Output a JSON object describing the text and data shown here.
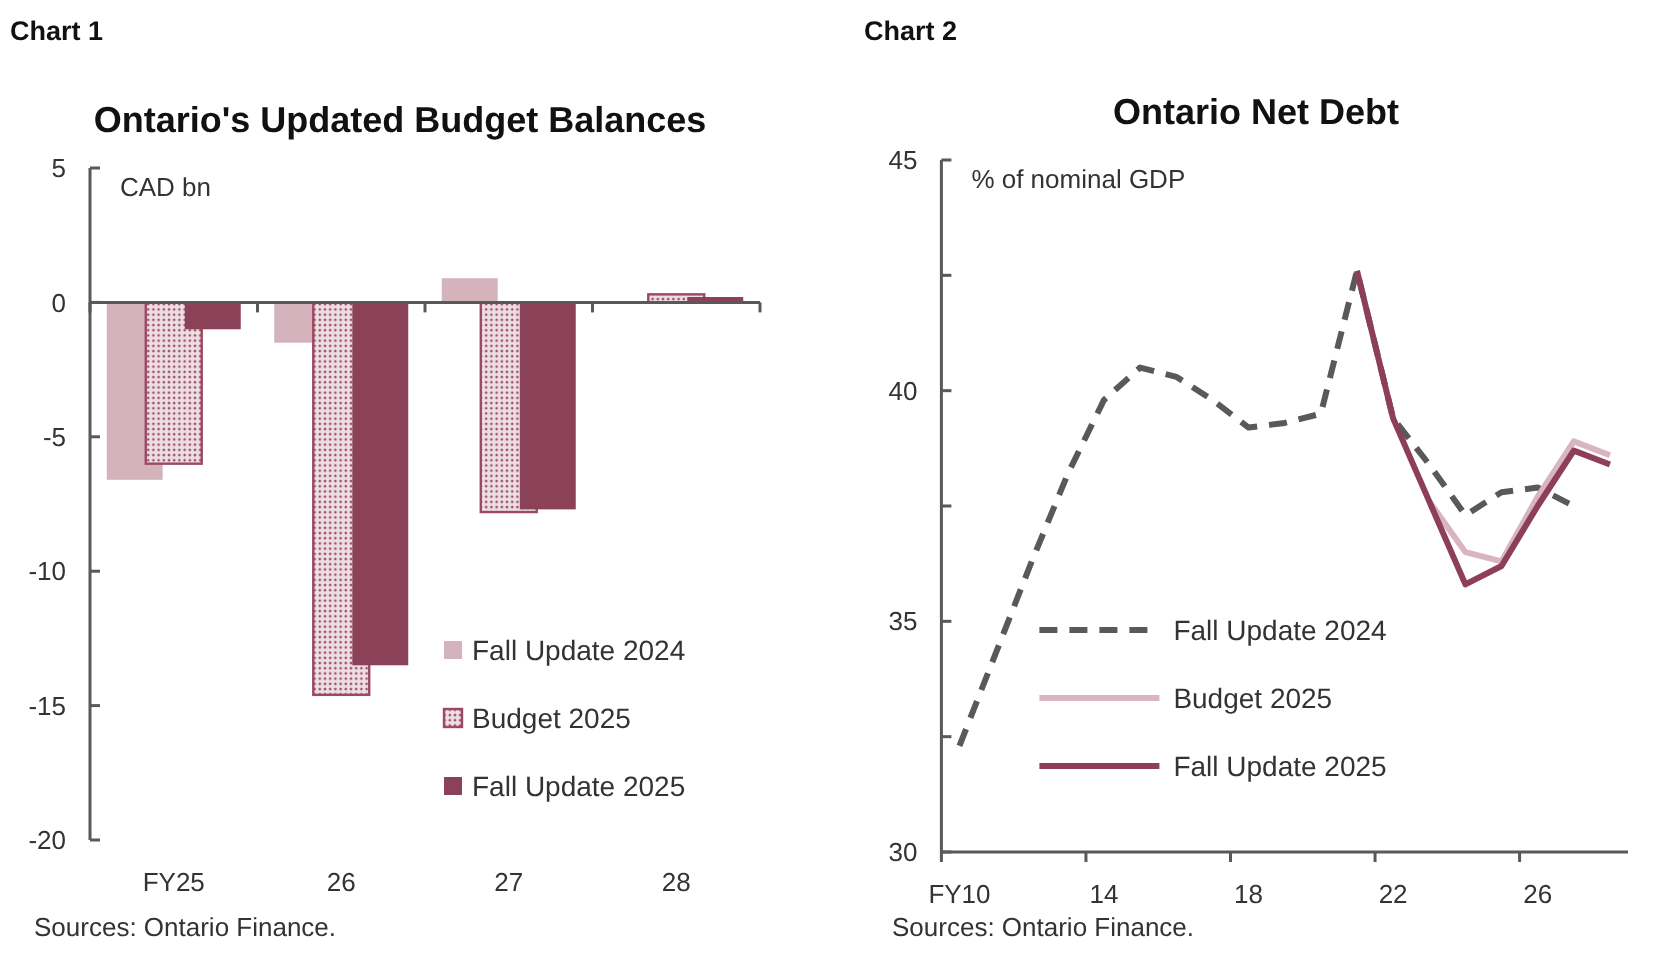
{
  "chart_data": [
    {
      "type": "bar",
      "title": "Ontario's Updated Budget Balances",
      "ylabel": "CAD bn",
      "annotations": [
        "Chart 1",
        "Sources: Ontario Finance."
      ],
      "categories": [
        "FY25",
        "26",
        "27",
        "28"
      ],
      "ylim": [
        -20,
        5
      ],
      "yticks": [
        -20,
        -15,
        -10,
        -5,
        0,
        5
      ],
      "legend": "bottom right",
      "series": [
        {
          "name": "Fall Update 2024",
          "color": "#d5b3bd",
          "values": [
            -6.6,
            -1.5,
            0.9,
            null
          ]
        },
        {
          "name": "Budget 2025",
          "color": "#9b4a62",
          "line_style": "dotted",
          "values": [
            -6.0,
            -14.6,
            -7.8,
            0.3
          ]
        },
        {
          "name": "Fall Update 2025",
          "color": "#8b4259",
          "values": [
            -1.0,
            -13.5,
            -7.7,
            0.2
          ]
        }
      ]
    },
    {
      "type": "line",
      "title": "Ontario Net Debt",
      "ylabel": "% of nominal GDP",
      "annotations": [
        "Chart 2",
        "Sources: Ontario Finance."
      ],
      "categories": [
        "FY10",
        null,
        null,
        null,
        "14",
        null,
        null,
        null,
        "18",
        null,
        null,
        null,
        "22",
        null,
        null,
        null,
        "26",
        null,
        null
      ],
      "ylim": [
        30,
        45
      ],
      "yticks": [
        30,
        {
          "value": 32.5,
          "label": null
        },
        35,
        {
          "value": 37.5,
          "label": null
        },
        40,
        {
          "value": 42.5,
          "label": null
        },
        45
      ],
      "legend": "bottom left",
      "series": [
        {
          "name": "Fall Update 2024",
          "color": "#595959",
          "line_style": "dashed",
          "values": [
            32.3,
            34.3,
            36.3,
            38.2,
            39.8,
            40.5,
            40.3,
            39.8,
            39.2,
            39.3,
            39.5,
            42.6,
            39.4,
            38.4,
            37.3,
            37.8,
            37.9,
            37.5,
            null
          ]
        },
        {
          "name": "Budget 2025",
          "color": "#d9b5c0",
          "line_style": "solid",
          "values": [
            null,
            null,
            null,
            null,
            null,
            null,
            null,
            null,
            null,
            null,
            null,
            null,
            null,
            37.6,
            36.5,
            36.3,
            37.7,
            38.9,
            38.6
          ]
        },
        {
          "name": "Fall Update 2025",
          "color": "#8c3f56",
          "line_style": "solid",
          "values": [
            null,
            null,
            null,
            null,
            null,
            null,
            null,
            null,
            null,
            null,
            null,
            42.6,
            39.4,
            37.6,
            35.8,
            36.2,
            37.5,
            38.7,
            38.4
          ]
        }
      ]
    }
  ]
}
